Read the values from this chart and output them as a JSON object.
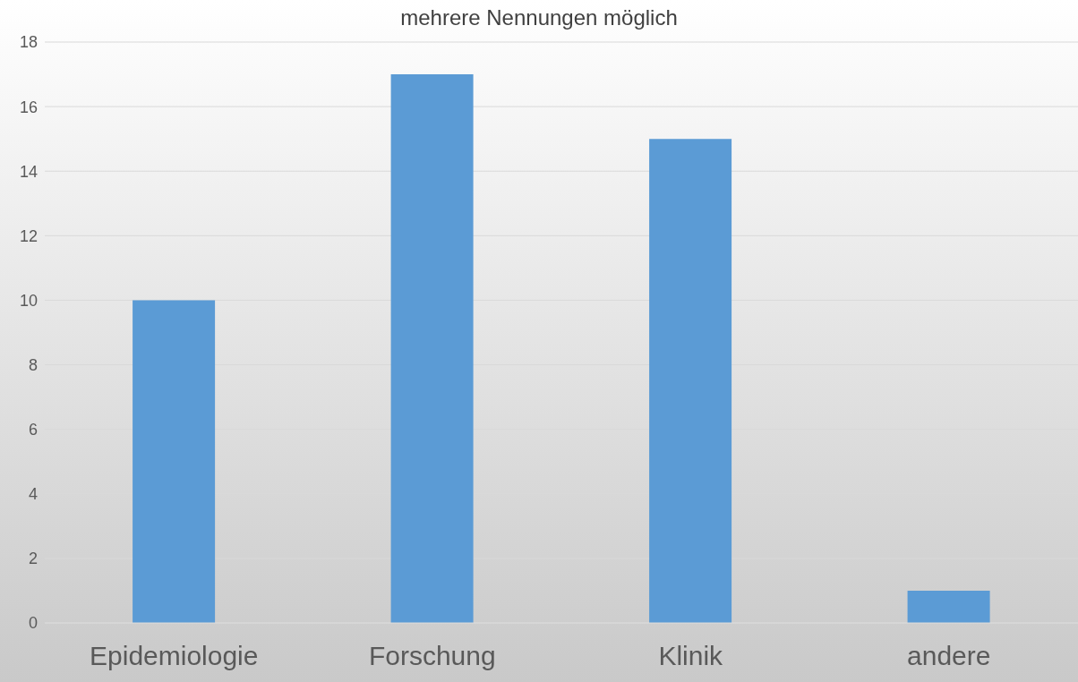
{
  "chart_data": {
    "type": "bar",
    "title": "mehrere Nennungen möglich",
    "categories": [
      "Epidemiologie",
      "Forschung",
      "Klinik",
      "andere"
    ],
    "values": [
      10,
      17,
      15,
      1
    ],
    "color": "#5b9bd5",
    "ylim": [
      0,
      18
    ],
    "yticks": [
      0,
      2,
      4,
      6,
      8,
      10,
      12,
      14,
      16,
      18
    ],
    "grid": "y"
  }
}
